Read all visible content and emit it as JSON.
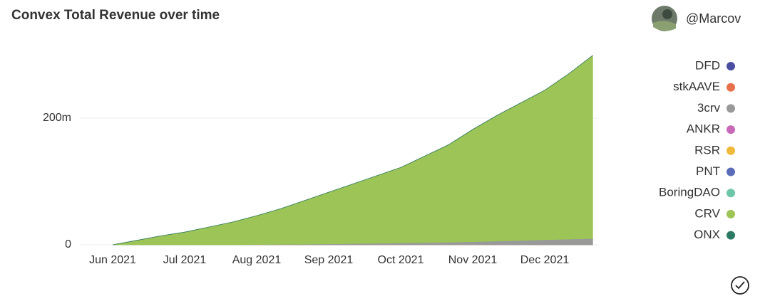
{
  "chart_data": {
    "type": "stacked-area",
    "title": "Convex Total Revenue over time",
    "author": "@Marcov",
    "categories": [
      "Jun 2021",
      null,
      null,
      "Jul 2021",
      null,
      null,
      "Aug 2021",
      null,
      null,
      "Sep 2021",
      null,
      null,
      "Oct 2021",
      null,
      null,
      "Nov 2021",
      null,
      null,
      "Dec 2021",
      null,
      null
    ],
    "ylim": [
      0,
      300
    ],
    "yticks": [
      0,
      {
        "value": 200,
        "label": "200m"
      }
    ],
    "grid": true,
    "legend": "right",
    "series": [
      {
        "name": "DFD",
        "color": "#4b4ea0",
        "values": [
          0,
          0,
          0,
          0,
          0,
          0,
          0,
          0,
          0,
          0,
          0,
          0,
          0,
          0,
          0,
          0,
          0,
          0,
          0,
          0,
          0
        ]
      },
      {
        "name": "stkAAVE",
        "color": "#e8704a",
        "values": [
          0,
          0,
          0,
          0,
          0,
          0,
          0,
          0,
          0,
          0,
          0,
          0,
          0,
          0,
          0,
          0,
          0,
          0,
          0,
          0,
          0
        ]
      },
      {
        "name": "3crv",
        "color": "#999999",
        "values": [
          0,
          0,
          0,
          0,
          0,
          0,
          0.5,
          0.8,
          1,
          1.5,
          2,
          2.5,
          3,
          3.5,
          4,
          5,
          6,
          7,
          8,
          9,
          10
        ]
      },
      {
        "name": "ANKR",
        "color": "#c86ab8",
        "values": [
          0,
          0,
          0,
          0,
          0,
          0,
          0,
          0,
          0,
          0,
          0,
          0,
          0,
          0,
          0,
          0,
          0,
          0,
          0,
          0,
          0
        ]
      },
      {
        "name": "RSR",
        "color": "#f0b93a",
        "values": [
          0,
          0,
          0,
          0,
          0,
          0,
          0,
          0,
          0,
          0,
          0,
          0,
          0,
          0,
          0,
          0,
          0,
          0,
          0,
          0,
          0
        ]
      },
      {
        "name": "PNT",
        "color": "#5a6bb8",
        "values": [
          0,
          0,
          0,
          0,
          0,
          0,
          0,
          0,
          0,
          0,
          0,
          0,
          0,
          0,
          0,
          0,
          0,
          0,
          0,
          0,
          0
        ]
      },
      {
        "name": "BoringDAO",
        "color": "#6cc6a8",
        "values": [
          0,
          0,
          0,
          0,
          0,
          0,
          0,
          0,
          0,
          0,
          0,
          0,
          0,
          0,
          0,
          0,
          0,
          0,
          0,
          0,
          0
        ]
      },
      {
        "name": "CRV",
        "color": "#9dc456",
        "values": [
          0,
          7,
          14,
          20,
          28,
          36,
          45.5,
          56.2,
          69,
          81.5,
          94,
          106.5,
          119,
          136.5,
          154,
          177,
          198,
          217,
          236,
          261,
          289
        ]
      },
      {
        "name": "ONX",
        "color": "#2d7a64",
        "values": [
          0,
          0,
          0,
          0,
          0,
          0,
          0,
          0,
          0,
          0,
          0,
          0,
          0,
          0,
          0,
          0,
          0,
          0,
          0,
          0,
          0
        ]
      }
    ]
  }
}
